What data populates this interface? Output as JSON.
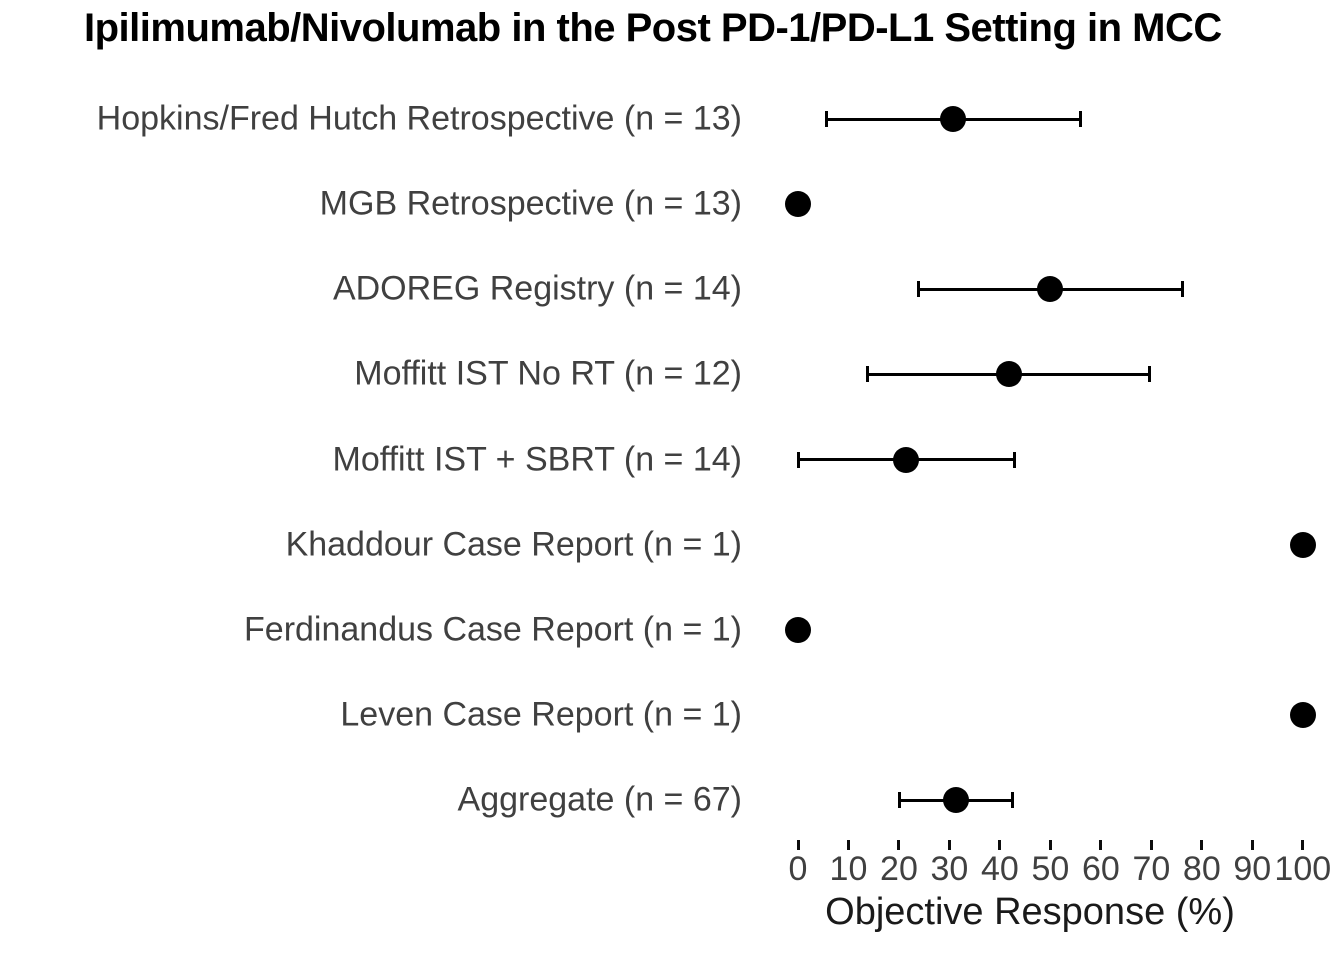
{
  "chart_data": {
    "type": "scatter",
    "subtype": "forest-plot",
    "title": "Ipilimumab/Nivolumab in the Post PD-1/PD-L1 Setting in MCC",
    "xlabel": "Objective Response (%)",
    "xlim": [
      0,
      100
    ],
    "xticks": [
      0,
      10,
      20,
      30,
      40,
      50,
      60,
      70,
      80,
      90,
      100
    ],
    "grid": false,
    "legend": "none",
    "marker_color": "#000000",
    "error_bar_color": "#000000",
    "label_color": "#404040",
    "title_color": "#000000",
    "studies": [
      {
        "label": "Hopkins/Fred Hutch Retrospective (n = 13)",
        "orr": 30.8,
        "ci_low": 5.7,
        "ci_high": 55.9
      },
      {
        "label": "MGB Retrospective (n = 13)",
        "orr": 0,
        "ci_low": null,
        "ci_high": null
      },
      {
        "label": "ADOREG Registry (n = 14)",
        "orr": 50.0,
        "ci_low": 23.8,
        "ci_high": 76.2
      },
      {
        "label": "Moffitt IST No RT (n = 12)",
        "orr": 41.7,
        "ci_low": 13.8,
        "ci_high": 69.6
      },
      {
        "label": "Moffitt IST + SBRT (n = 14)",
        "orr": 21.4,
        "ci_low": 0,
        "ci_high": 42.9
      },
      {
        "label": "Khaddour Case Report (n = 1)",
        "orr": 100,
        "ci_low": null,
        "ci_high": null
      },
      {
        "label": "Ferdinandus Case Report (n = 1)",
        "orr": 0,
        "ci_low": null,
        "ci_high": null
      },
      {
        "label": "Leven Case Report (n = 1)",
        "orr": 100,
        "ci_low": null,
        "ci_high": null
      },
      {
        "label": "Aggregate (n = 67)",
        "orr": 31.3,
        "ci_low": 20.2,
        "ci_high": 42.5
      }
    ]
  }
}
